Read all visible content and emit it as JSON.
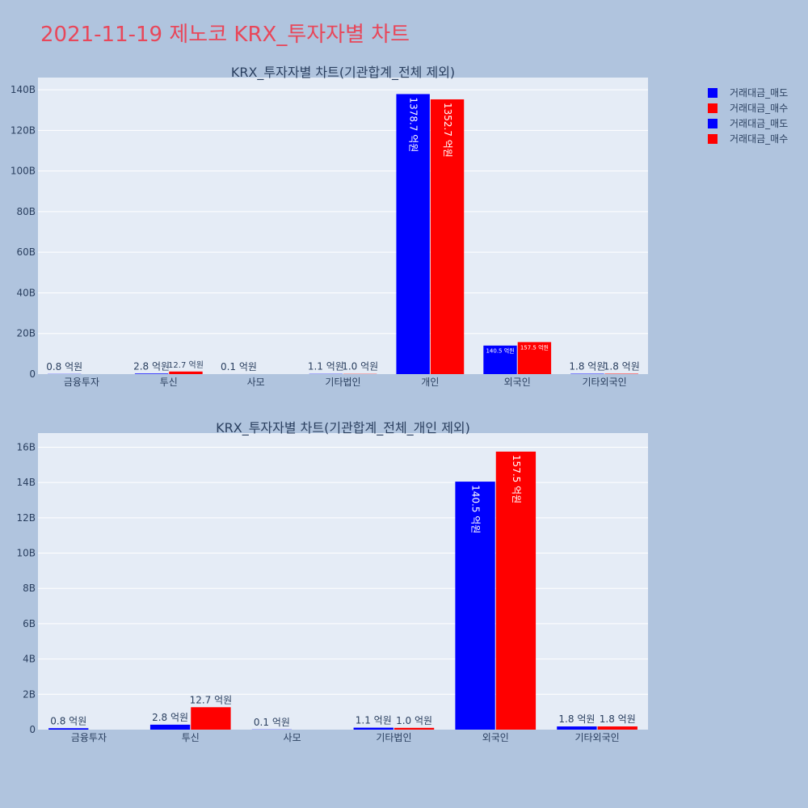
{
  "title": "2021-11-19 제노코 KRX_투자자별 차트",
  "colors": {
    "sell": "#0000ff",
    "buy": "#ff0000",
    "plot_bg": "#e5ecf6",
    "page_bg": "#b0c4de",
    "title": "#e8475a"
  },
  "legend": [
    "거래대금_매도",
    "거래대금_매수",
    "거래대금_매도",
    "거래대금_매수"
  ],
  "chart_data": [
    {
      "type": "bar",
      "title": "KRX_투자자별 차트(기관합계_전체 제외)",
      "categories": [
        "금융투자",
        "투신",
        "사모",
        "기타법인",
        "개인",
        "외국인",
        "기타외국인"
      ],
      "ylim": [
        0,
        146
      ],
      "y_unit": "B",
      "yticks": [
        0,
        20,
        40,
        60,
        80,
        100,
        120,
        140
      ],
      "ytick_labels": [
        "0",
        "20B",
        "40B",
        "60B",
        "80B",
        "100B",
        "120B",
        "140B"
      ],
      "grid": true,
      "legend_position": "top-right",
      "series": [
        {
          "name": "거래대금_매도",
          "values": [
            0.08,
            0.28,
            0.01,
            0.11,
            137.87,
            14.05,
            0.18
          ],
          "labels": [
            "0.8 억원",
            "2.8 억원",
            "0.1 억원",
            "1.1 억원",
            "1378.7 억원",
            "140.5 억원",
            "1.8 억원"
          ]
        },
        {
          "name": "거래대금_매수",
          "values": [
            0,
            1.27,
            0,
            0.1,
            135.27,
            15.75,
            0.18
          ],
          "labels": [
            "",
            "12.7 억원",
            "",
            "1.0 억원",
            "1352.7 억원",
            "157.5 억원",
            "1.8 억원"
          ]
        }
      ]
    },
    {
      "type": "bar",
      "title": "KRX_투자자별 차트(기관합계_전체_개인 제외)",
      "categories": [
        "금융투자",
        "투신",
        "사모",
        "기타법인",
        "외국인",
        "기타외국인"
      ],
      "ylim": [
        0,
        16.8
      ],
      "y_unit": "B",
      "yticks": [
        0,
        2,
        4,
        6,
        8,
        10,
        12,
        14,
        16
      ],
      "ytick_labels": [
        "0",
        "2B",
        "4B",
        "6B",
        "8B",
        "10B",
        "12B",
        "14B",
        "16B"
      ],
      "grid": true,
      "series": [
        {
          "name": "거래대금_매도",
          "values": [
            0.08,
            0.28,
            0.01,
            0.11,
            14.05,
            0.18
          ],
          "labels": [
            "0.8 억원",
            "2.8 억원",
            "0.1 억원",
            "1.1 억원",
            "140.5 억원",
            "1.8 억원"
          ]
        },
        {
          "name": "거래대금_매수",
          "values": [
            0,
            1.27,
            0,
            0.1,
            15.75,
            0.18
          ],
          "labels": [
            "",
            "12.7 억원",
            "",
            "1.0 억원",
            "157.5 억원",
            "1.8 억원"
          ]
        }
      ]
    }
  ]
}
